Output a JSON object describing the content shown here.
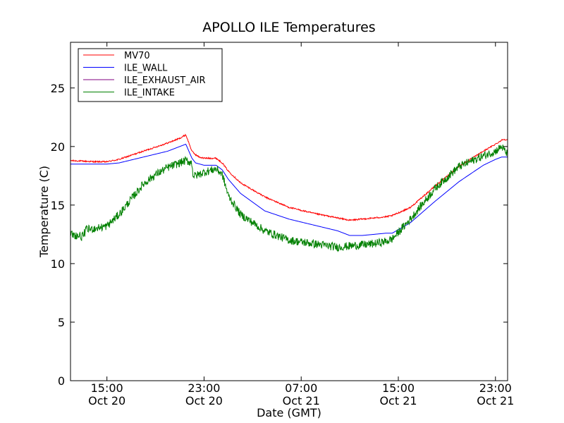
{
  "chart_data": {
    "type": "line",
    "title": "APOLLO ILE Temperatures",
    "xlabel": "Date (GMT)",
    "ylabel": "Temperature (C)",
    "x_unit": "hours since Oct 20 00:00 GMT",
    "xlim": [
      12.0,
      48.0
    ],
    "ylim": [
      0,
      28.9
    ],
    "grid": false,
    "legend_position": "top-left",
    "yticks": [
      0,
      5,
      10,
      15,
      20,
      25
    ],
    "xticks": [
      {
        "value": 15,
        "line1": "15:00",
        "line2": "Oct 20"
      },
      {
        "value": 23,
        "line1": "23:00",
        "line2": "Oct 20"
      },
      {
        "value": 31,
        "line1": "07:00",
        "line2": "Oct 21"
      },
      {
        "value": 39,
        "line1": "15:00",
        "line2": "Oct 21"
      },
      {
        "value": 47,
        "line1": "23:00",
        "line2": "Oct 21"
      }
    ],
    "series": [
      {
        "name": "MV70",
        "color": "#ff0000",
        "noise": 0.06,
        "x": [
          12.0,
          14.0,
          15.0,
          16.0,
          18.0,
          20.0,
          21.0,
          21.5,
          22.0,
          22.3,
          22.6,
          23.0,
          24.0,
          24.5,
          25.0,
          26.0,
          28.0,
          30.0,
          32.0,
          34.0,
          35.0,
          36.0,
          38.0,
          38.5,
          40.0,
          42.0,
          44.0,
          46.0,
          47.0,
          47.6,
          48.0
        ],
        "y": [
          18.8,
          18.7,
          18.7,
          18.9,
          19.6,
          20.3,
          20.7,
          21.0,
          19.6,
          19.3,
          19.1,
          19.0,
          19.0,
          18.6,
          17.9,
          16.9,
          15.7,
          14.8,
          14.3,
          13.9,
          13.7,
          13.8,
          14.0,
          14.1,
          14.8,
          16.6,
          18.3,
          19.6,
          20.2,
          20.6,
          20.6
        ]
      },
      {
        "name": "ILE_WALL",
        "color": "#0000ff",
        "noise": 0.0,
        "x": [
          12.0,
          15.0,
          16.0,
          18.0,
          20.0,
          21.5,
          22.0,
          22.3,
          23.0,
          24.0,
          24.5,
          25.0,
          26.0,
          28.0,
          30.0,
          32.0,
          34.0,
          35.0,
          36.0,
          37.0,
          38.0,
          38.5,
          40.0,
          42.0,
          44.0,
          46.0,
          47.0,
          47.5,
          48.0
        ],
        "y": [
          18.5,
          18.5,
          18.6,
          19.1,
          19.6,
          20.2,
          19.0,
          18.6,
          18.4,
          18.4,
          18.0,
          17.2,
          16.0,
          14.5,
          13.8,
          13.3,
          12.8,
          12.4,
          12.4,
          12.5,
          12.6,
          12.6,
          13.5,
          15.3,
          17.0,
          18.4,
          18.9,
          19.1,
          19.1
        ]
      },
      {
        "name": "ILE_EXHAUST_AIR",
        "color": "#800080",
        "noise": 0.0,
        "x": [],
        "y": []
      },
      {
        "name": "ILE_INTAKE",
        "color": "#008000",
        "noise": 0.35,
        "x": [
          12.0,
          13.0,
          13.3,
          14.0,
          15.0,
          16.0,
          17.0,
          18.0,
          19.0,
          20.0,
          21.0,
          21.5,
          22.0,
          22.1,
          22.3,
          23.0,
          24.0,
          24.5,
          25.0,
          26.0,
          28.0,
          30.0,
          32.0,
          34.0,
          35.0,
          37.0,
          38.0,
          38.5,
          40.0,
          42.0,
          44.0,
          46.0,
          47.0,
          47.5,
          48.0
        ],
        "y": [
          12.5,
          12.3,
          12.9,
          13.0,
          13.2,
          14.2,
          15.5,
          16.8,
          17.6,
          18.2,
          18.6,
          18.8,
          18.6,
          17.5,
          17.5,
          17.8,
          18.1,
          17.6,
          15.8,
          14.2,
          12.8,
          12.0,
          11.7,
          11.4,
          11.5,
          11.7,
          11.9,
          12.1,
          13.8,
          16.4,
          18.3,
          19.2,
          19.6,
          20.0,
          19.3
        ]
      }
    ]
  }
}
